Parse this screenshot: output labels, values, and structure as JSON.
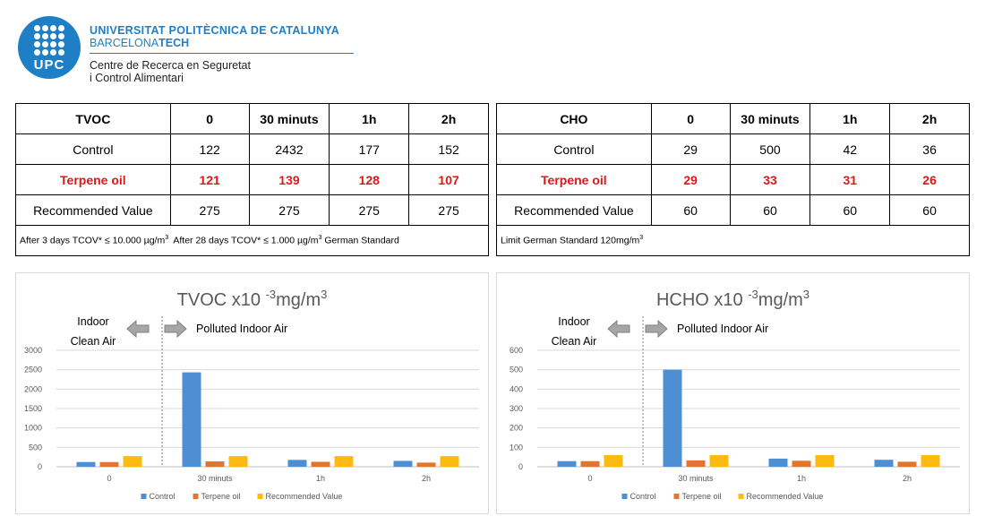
{
  "header": {
    "logo_text": "UPC",
    "university_bold": "UNIVERSITAT POLITÈCNICA DE CATALUNYA",
    "campus_prefix": "BARCELONA",
    "campus_suffix": "TECH",
    "centre_line1": "Centre de Recerca en Seguretat",
    "centre_line2": "i Control Alimentari",
    "brand_color": "#1e7fc7"
  },
  "tables": [
    {
      "headers": [
        "TVOC",
        "0",
        "30 minuts",
        "1h",
        "2h"
      ],
      "rows": [
        [
          "Control",
          "122",
          "2432",
          "177",
          "152"
        ],
        [
          "Terpene oil",
          "121",
          "139",
          "128",
          "107"
        ],
        [
          "Recommended Value",
          "275",
          "275",
          "275",
          "275"
        ]
      ],
      "note_a": "After 3 days TCOV* ≤ 10.000 µg/m",
      "note_a_sup": "3",
      "note_b": "  After 28 days TCOV* ≤ 1.000 µg/m",
      "note_b_sup": "3",
      "note_c": " German Standard"
    },
    {
      "headers": [
        "CHO",
        "0",
        "30 minuts",
        "1h",
        "2h"
      ],
      "rows": [
        [
          "Control",
          "29",
          "500",
          "42",
          "36"
        ],
        [
          "Terpene oil",
          "29",
          "33",
          "31",
          "26"
        ],
        [
          "Recommended Value",
          "60",
          "60",
          "60",
          "60"
        ]
      ],
      "note_a": "Limit German Standard 120mg/m",
      "note_a_sup": "3",
      "note_b": "",
      "note_b_sup": "",
      "note_c": ""
    }
  ],
  "highlight_color": "#e0161b",
  "chart_data": [
    {
      "type": "bar",
      "title_prefix": "TVOC x10 ",
      "title_sup1": "-3",
      "title_mid": "mg/m",
      "title_sup2": "3",
      "categories": [
        "0",
        "30 minuts",
        "1h",
        "2h"
      ],
      "series": [
        {
          "name": "Control",
          "color": "#4e8fd4",
          "values": [
            122,
            2432,
            177,
            152
          ]
        },
        {
          "name": "Terpene oil",
          "color": "#e3752f",
          "values": [
            121,
            139,
            128,
            107
          ]
        },
        {
          "name": "Recommended Value",
          "color": "#fdbb12",
          "values": [
            275,
            275,
            275,
            275
          ]
        }
      ],
      "ylim": [
        0,
        3000
      ],
      "yticks": [
        0,
        500,
        1000,
        1500,
        2000,
        2500,
        3000
      ],
      "grid": true,
      "legend": "bottom",
      "annotation_left_line1": "Indoor",
      "annotation_left_line2": "Clean Air",
      "annotation_right": "Polluted Indoor Air"
    },
    {
      "type": "bar",
      "title_prefix": "HCHO x10 ",
      "title_sup1": "-3",
      "title_mid": "mg/m",
      "title_sup2": "3",
      "categories": [
        "0",
        "30 minuts",
        "1h",
        "2h"
      ],
      "series": [
        {
          "name": "Control",
          "color": "#4e8fd4",
          "values": [
            29,
            500,
            42,
            36
          ]
        },
        {
          "name": "Terpene oil",
          "color": "#e3752f",
          "values": [
            29,
            33,
            31,
            26
          ]
        },
        {
          "name": "Recommended Value",
          "color": "#fdbb12",
          "values": [
            60,
            60,
            60,
            60
          ]
        }
      ],
      "ylim": [
        0,
        600
      ],
      "yticks": [
        0,
        100,
        200,
        300,
        400,
        500,
        600
      ],
      "grid": true,
      "legend": "bottom",
      "annotation_left_line1": "Indoor",
      "annotation_left_line2": "Clean Air",
      "annotation_right": "Polluted Indoor Air"
    }
  ]
}
